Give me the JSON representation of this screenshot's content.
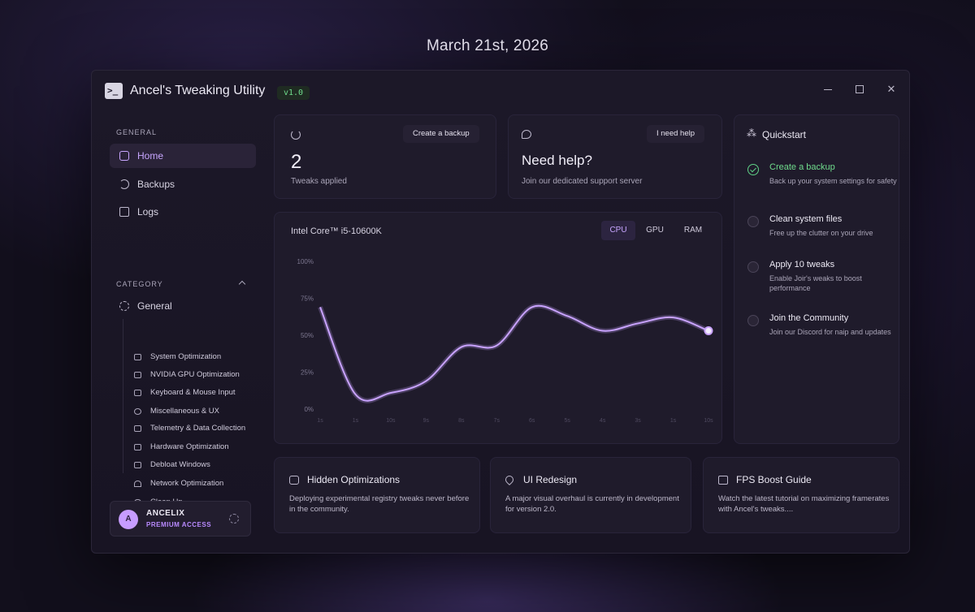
{
  "date_heading": "March 21st, 2026",
  "window": {
    "title": "Ancel's Tweaking Utility",
    "version": "v1.0",
    "app_icon_glyph": ">_",
    "controls": {
      "close_glyph": "✕"
    }
  },
  "sidebar": {
    "general_label": "GENERAL",
    "nav": [
      {
        "label": "Home",
        "icon": "home-grid-icon",
        "active": true
      },
      {
        "label": "Backups",
        "icon": "backup-icon",
        "active": false
      },
      {
        "label": "Logs",
        "icon": "logs-icon",
        "active": false
      }
    ],
    "category_label": "CATEGORY",
    "category_general": "General",
    "sub_items": [
      {
        "label": "System Optimization",
        "icon": "cpu-icon"
      },
      {
        "label": "NVIDIA GPU Optimization",
        "icon": "monitor-icon"
      },
      {
        "label": "Keyboard & Mouse Input",
        "icon": "keyboard-icon"
      },
      {
        "label": "Miscellaneous & UX",
        "icon": "eye-icon"
      },
      {
        "label": "Telemetry & Data Collection",
        "icon": "sliders-icon"
      },
      {
        "label": "Hardware Optimization",
        "icon": "hardware-icon"
      },
      {
        "label": "Debloat Windows",
        "icon": "trash-icon"
      },
      {
        "label": "Network Optimization",
        "icon": "wifi-icon"
      },
      {
        "label": "Clean Up",
        "icon": "cloud-icon"
      }
    ],
    "user": {
      "initial": "A",
      "name": "ANCELIX",
      "plan": "PREMIUM ACCESS"
    }
  },
  "tweaks_card": {
    "button": "Create a backup",
    "count": "2",
    "caption": "Tweaks applied"
  },
  "help_card": {
    "button": "I need help",
    "title": "Need help?",
    "caption": "Join our dedicated support server"
  },
  "chart_data": {
    "type": "line",
    "title": "Intel Core™ i5-10600K",
    "tabs": [
      "CPU",
      "GPU",
      "RAM"
    ],
    "active_tab": "CPU",
    "y_ticks": [
      "100%",
      "75%",
      "50%",
      "25%",
      "0%"
    ],
    "x": [
      "1s",
      "1s",
      "10s",
      "9s",
      "8s",
      "7s",
      "6s",
      "5s",
      "4s",
      "3s",
      "1s",
      "10s"
    ],
    "values": [
      69,
      10,
      11,
      19,
      42,
      43,
      69,
      63,
      53,
      58,
      62,
      53
    ],
    "ylim": [
      0,
      100
    ],
    "line_color": "#c9a3ff",
    "grid": false
  },
  "quickstart": {
    "title": "Quickstart",
    "items": [
      {
        "title": "Create a backup",
        "desc": "Back up your system settings for safety",
        "done": true
      },
      {
        "title": "Clean system files",
        "desc": "Free up the clutter on your drive",
        "done": false
      },
      {
        "title": "Apply 10 tweaks",
        "desc": "Enable Joir's weaks to boost performance",
        "done": false
      },
      {
        "title": "Join the Community",
        "desc": "Join our Discord for naip and updates",
        "done": false
      }
    ]
  },
  "bottom_cards": [
    {
      "title": "Hidden Optimizations",
      "desc": "Deploying experimental registry tweaks never before in the community.",
      "icon": "lock-icon"
    },
    {
      "title": "UI Redesign",
      "desc": "A major visual overhaul is currently in development for version 2.0.",
      "icon": "rocket-icon"
    },
    {
      "title": "FPS Boost Guide",
      "desc": "Watch the latest tutorial on maximizing framerates with Ancel's tweaks....",
      "icon": "tv-icon"
    }
  ],
  "colors": {
    "accent": "#c8a6ff",
    "success": "#6fdc8c",
    "background": "#120f1c"
  }
}
